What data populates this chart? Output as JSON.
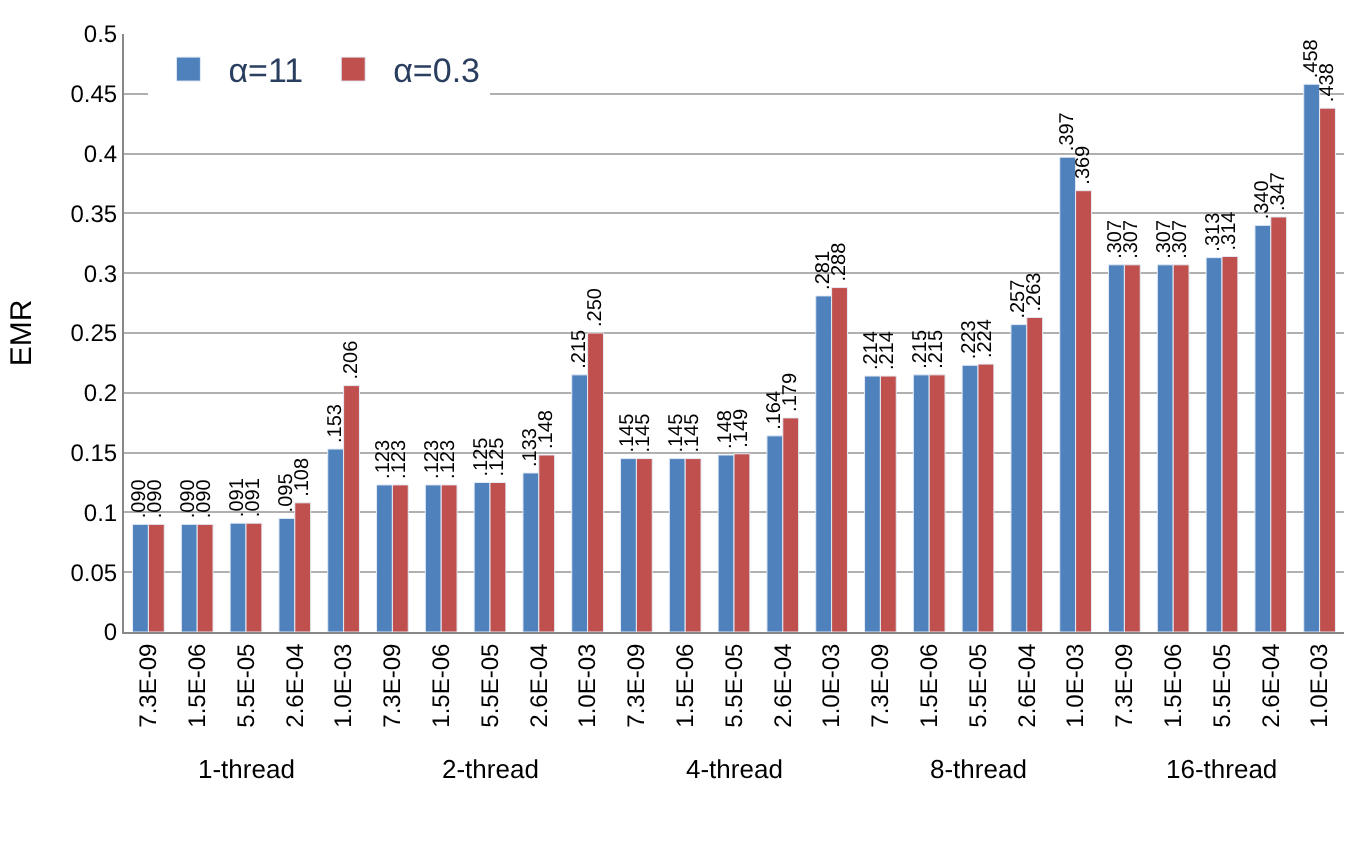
{
  "chart_data": {
    "type": "bar",
    "ylabel": "EMR",
    "categories": [
      "7.3E-09",
      "1.5E-06",
      "5.5E-05",
      "2.6E-04",
      "1.0E-03",
      "7.3E-09",
      "1.5E-06",
      "5.5E-05",
      "2.6E-04",
      "1.0E-03",
      "7.3E-09",
      "1.5E-06",
      "5.5E-05",
      "2.6E-04",
      "1.0E-03",
      "7.3E-09",
      "1.5E-06",
      "5.5E-05",
      "2.6E-04",
      "1.0E-03",
      "7.3E-09",
      "1.5E-06",
      "5.5E-05",
      "2.6E-04",
      "1.0E-03"
    ],
    "series": [
      {
        "name": "α=11",
        "color": "#4f81bd",
        "values": [
          0.09,
          0.09,
          0.091,
          0.095,
          0.153,
          0.123,
          0.123,
          0.125,
          0.133,
          0.215,
          0.145,
          0.145,
          0.148,
          0.164,
          0.281,
          0.214,
          0.215,
          0.223,
          0.257,
          0.397,
          0.307,
          0.307,
          0.313,
          0.34,
          0.458
        ],
        "value_labels": [
          ".090",
          ".090",
          ".091",
          ".095",
          ".153",
          ".123",
          ".123",
          ".125",
          ".133",
          ".215",
          ".145",
          ".145",
          ".148",
          ".164",
          ".281",
          ".214",
          ".215",
          ".223",
          ".257",
          ".397",
          ".307",
          ".307",
          ".313",
          ".340",
          ".458"
        ]
      },
      {
        "name": "α=0.3",
        "color": "#c0504d",
        "values": [
          0.09,
          0.09,
          0.091,
          0.108,
          0.206,
          0.123,
          0.123,
          0.125,
          0.148,
          0.25,
          0.145,
          0.145,
          0.149,
          0.179,
          0.288,
          0.214,
          0.215,
          0.224,
          0.263,
          0.369,
          0.307,
          0.307,
          0.314,
          0.347,
          0.438
        ],
        "value_labels": [
          ".090",
          ".090",
          ".091",
          ".108",
          ".206",
          ".123",
          ".123",
          ".125",
          ".148",
          ".250",
          ".145",
          ".145",
          ".149",
          ".179",
          ".288",
          ".214",
          ".215",
          ".224",
          ".263",
          ".369",
          ".307",
          ".307",
          ".314",
          ".347",
          ".438"
        ]
      }
    ],
    "annotations": [
      "1-thread",
      "2-thread",
      "4-thread",
      "8-thread",
      "16-thread"
    ],
    "ylim": [
      0,
      0.5
    ],
    "yticks": [
      0,
      0.05,
      0.1,
      0.15,
      0.2,
      0.25,
      0.3,
      0.35,
      0.4,
      0.45,
      0.5
    ],
    "grid": "y",
    "legend": "top left"
  }
}
